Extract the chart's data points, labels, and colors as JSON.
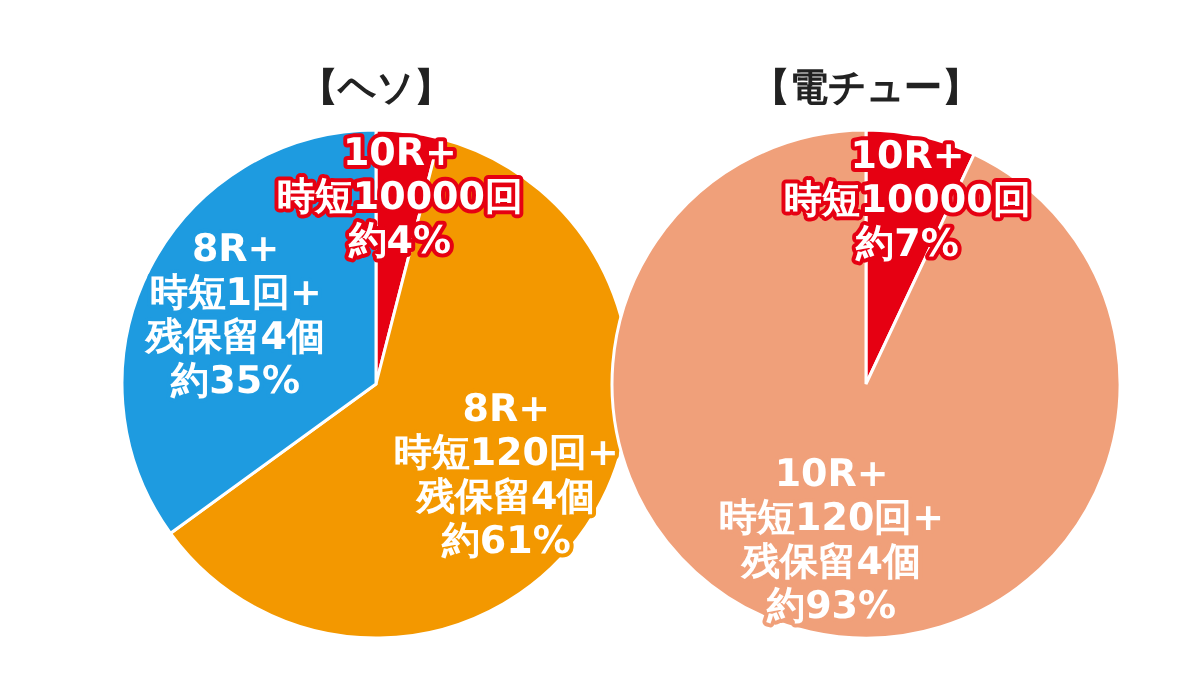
{
  "chart_data": [
    {
      "type": "pie",
      "title": "【ヘソ】",
      "categories": [
        "10R+\n時短10000回",
        "8R+\n時短120回+\n残保留4個",
        "8R+\n時短1回+\n残保留4個"
      ],
      "values": [
        4,
        61,
        35
      ],
      "colors": [
        "#e60012",
        "#f39800",
        "#1e9be0"
      ],
      "value_labels": [
        "約4%",
        "約61%",
        "約35%"
      ]
    },
    {
      "type": "pie",
      "title": "【電チュー】",
      "categories": [
        "10R+\n時短10000回",
        "10R+\n時短120回+\n残保留4個"
      ],
      "values": [
        7,
        93
      ],
      "colors": [
        "#e60012",
        "#f0a07a"
      ],
      "value_labels": [
        "約7%",
        "約93%"
      ]
    }
  ]
}
